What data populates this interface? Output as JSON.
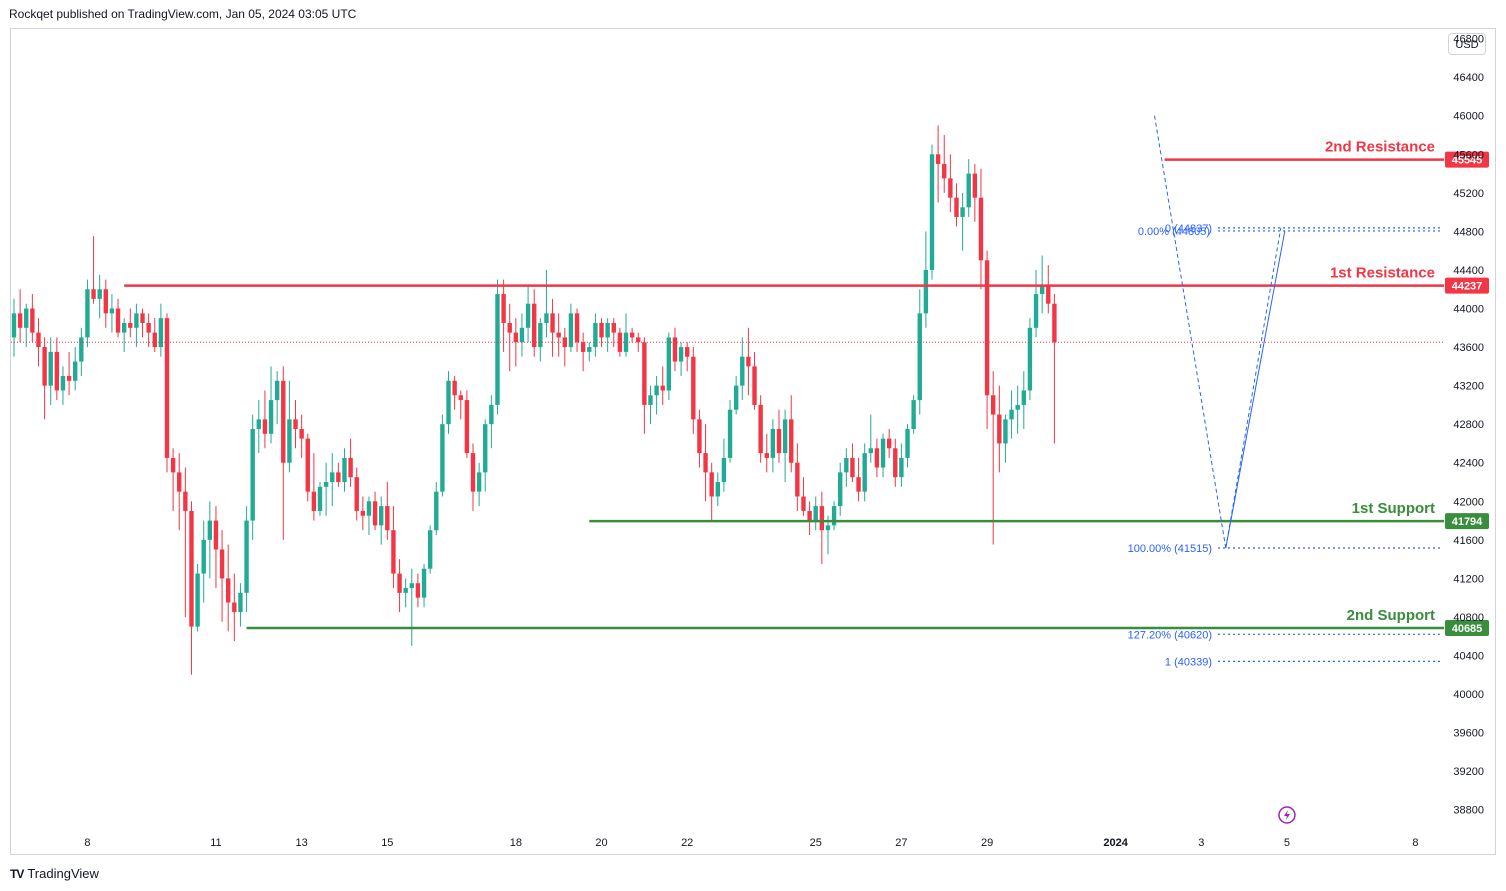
{
  "header": {
    "publisher": "Rockqet published on TradingView.com, Jan 05, 2024 03:05 UTC"
  },
  "currency": "USD",
  "footer": {
    "brand": "TradingView",
    "brand_mark": "TV"
  },
  "colors": {
    "up": "#22ab94",
    "down": "#f23645",
    "resistance": "#f23645",
    "support": "#388e3c",
    "fib": "#2962ff"
  },
  "chart_data": {
    "type": "candlestick",
    "ylim": [
      38600,
      46900
    ],
    "y_ticks": [
      38800,
      39200,
      39600,
      40000,
      40400,
      40800,
      41200,
      41600,
      42000,
      42400,
      42800,
      43200,
      43600,
      44000,
      44400,
      44800,
      45200,
      45600,
      46000,
      46400,
      46800
    ],
    "x_ticks": [
      {
        "label": "8",
        "index": 12
      },
      {
        "label": "11",
        "index": 33
      },
      {
        "label": "13",
        "index": 47
      },
      {
        "label": "15",
        "index": 61
      },
      {
        "label": "18",
        "index": 82
      },
      {
        "label": "20",
        "index": 96
      },
      {
        "label": "22",
        "index": 110
      },
      {
        "label": "25",
        "index": 131
      },
      {
        "label": "27",
        "index": 145
      },
      {
        "label": "29",
        "index": 159
      },
      {
        "label": "2024",
        "index": 180
      },
      {
        "label": "3",
        "index": 194
      },
      {
        "label": "5",
        "index": 208
      },
      {
        "label": "8",
        "index": 229
      }
    ],
    "levels": [
      {
        "name": "2nd Resistance",
        "value": 45545,
        "badge": "45545",
        "kind": "resistance",
        "from_index": 188
      },
      {
        "name": "1st Resistance",
        "value": 44237,
        "badge": "44237",
        "kind": "resistance",
        "from_index": 18
      },
      {
        "name": "1st Support",
        "value": 41794,
        "badge": "41794",
        "kind": "support",
        "from_index": 94
      },
      {
        "name": "2nd Support",
        "value": 40685,
        "badge": "40685",
        "kind": "support",
        "from_index": 38
      }
    ],
    "fib_levels": [
      {
        "label": "0.00% (44805)",
        "value": 44805
      },
      {
        "label": "0 (44837)",
        "value": 44837
      },
      {
        "label": "100.00% (41515)",
        "value": 41515
      },
      {
        "label": "127.20% (40620)",
        "value": 40620
      },
      {
        "label": "1 (40339)",
        "value": 40339
      }
    ],
    "last_price": 43650,
    "candles": [
      [
        43700,
        44100,
        43500,
        43950
      ],
      [
        43950,
        44200,
        43650,
        43800
      ],
      [
        43800,
        44050,
        43600,
        44000
      ],
      [
        44000,
        44150,
        43650,
        43750
      ],
      [
        43750,
        43900,
        43400,
        43600
      ],
      [
        43600,
        43700,
        42850,
        43200
      ],
      [
        43200,
        43700,
        43000,
        43550
      ],
      [
        43550,
        43700,
        43050,
        43150
      ],
      [
        43150,
        43400,
        43000,
        43300
      ],
      [
        43300,
        43550,
        43100,
        43250
      ],
      [
        43250,
        43600,
        43150,
        43450
      ],
      [
        43450,
        43800,
        43300,
        43700
      ],
      [
        43700,
        44300,
        43600,
        44200
      ],
      [
        44200,
        44750,
        44050,
        44100
      ],
      [
        44100,
        44350,
        43900,
        44200
      ],
      [
        44200,
        44300,
        43800,
        43950
      ],
      [
        43950,
        44150,
        43750,
        44000
      ],
      [
        44000,
        44100,
        43700,
        43750
      ],
      [
        43750,
        43900,
        43550,
        43850
      ],
      [
        43850,
        44000,
        43700,
        43800
      ],
      [
        43800,
        44050,
        43600,
        43950
      ],
      [
        43950,
        44000,
        43700,
        43850
      ],
      [
        43850,
        43950,
        43600,
        43750
      ],
      [
        43750,
        43900,
        43550,
        43600
      ],
      [
        43600,
        44050,
        43500,
        43900
      ],
      [
        43900,
        43950,
        42300,
        42450
      ],
      [
        42450,
        42550,
        41900,
        42300
      ],
      [
        42300,
        42500,
        41700,
        42100
      ],
      [
        42100,
        42350,
        40800,
        41900
      ],
      [
        41900,
        42000,
        40200,
        40700
      ],
      [
        40700,
        41350,
        40650,
        41250
      ],
      [
        41250,
        41800,
        40950,
        41600
      ],
      [
        41600,
        42000,
        41200,
        41800
      ],
      [
        41800,
        41950,
        41100,
        41500
      ],
      [
        41500,
        41700,
        40750,
        41200
      ],
      [
        41200,
        41550,
        40650,
        40950
      ],
      [
        40950,
        41250,
        40550,
        40850
      ],
      [
        40850,
        41150,
        40700,
        41050
      ],
      [
        41050,
        41950,
        40850,
        41800
      ],
      [
        41800,
        42900,
        41600,
        42750
      ],
      [
        42750,
        43050,
        42500,
        42850
      ],
      [
        42850,
        43150,
        42550,
        42700
      ],
      [
        42700,
        43400,
        42600,
        43050
      ],
      [
        43050,
        43350,
        42800,
        43250
      ],
      [
        43250,
        43400,
        41600,
        42400
      ],
      [
        42400,
        43250,
        42300,
        42850
      ],
      [
        42850,
        43050,
        42550,
        42750
      ],
      [
        42750,
        42900,
        42450,
        42650
      ],
      [
        42650,
        42700,
        42000,
        42100
      ],
      [
        42100,
        42500,
        41800,
        41900
      ],
      [
        41900,
        42200,
        41850,
        42150
      ],
      [
        42150,
        42400,
        41850,
        42200
      ],
      [
        42200,
        42500,
        41950,
        42300
      ],
      [
        42300,
        42400,
        42150,
        42200
      ],
      [
        42200,
        42550,
        42100,
        42450
      ],
      [
        42450,
        42650,
        42150,
        42250
      ],
      [
        42250,
        42350,
        41800,
        41900
      ],
      [
        41900,
        42050,
        41700,
        41850
      ],
      [
        41850,
        42050,
        41650,
        42000
      ],
      [
        42000,
        42100,
        41700,
        41750
      ],
      [
        41750,
        42050,
        41550,
        41950
      ],
      [
        41950,
        42200,
        41600,
        41700
      ],
      [
        41700,
        41950,
        41100,
        41250
      ],
      [
        41250,
        41400,
        40850,
        41050
      ],
      [
        41050,
        41200,
        40900,
        41100
      ],
      [
        41100,
        41300,
        40500,
        41150
      ],
      [
        41150,
        41250,
        40900,
        41000
      ],
      [
        41000,
        41350,
        40900,
        41300
      ],
      [
        41300,
        41750,
        41250,
        41700
      ],
      [
        41700,
        42200,
        41650,
        42100
      ],
      [
        42100,
        42900,
        42050,
        42800
      ],
      [
        42800,
        43350,
        42700,
        43250
      ],
      [
        43250,
        43300,
        42950,
        43100
      ],
      [
        43100,
        43150,
        42850,
        43050
      ],
      [
        43050,
        43150,
        42450,
        42500
      ],
      [
        42500,
        42600,
        41900,
        42100
      ],
      [
        42100,
        42400,
        41950,
        42300
      ],
      [
        42300,
        42850,
        42100,
        42800
      ],
      [
        42800,
        43100,
        42550,
        43000
      ],
      [
        43000,
        44300,
        42900,
        44150
      ],
      [
        44150,
        44300,
        43550,
        43850
      ],
      [
        43850,
        44050,
        43350,
        43750
      ],
      [
        43750,
        43900,
        43400,
        43650
      ],
      [
        43650,
        43950,
        43500,
        43800
      ],
      [
        43800,
        44250,
        43650,
        44050
      ],
      [
        44050,
        44200,
        43500,
        43600
      ],
      [
        43600,
        43900,
        43450,
        43850
      ],
      [
        43850,
        44400,
        43700,
        43950
      ],
      [
        43950,
        44100,
        43500,
        43750
      ],
      [
        43750,
        43950,
        43500,
        43700
      ],
      [
        43700,
        43800,
        43400,
        43600
      ],
      [
        43600,
        44050,
        43550,
        43950
      ],
      [
        43950,
        44000,
        43550,
        43650
      ],
      [
        43650,
        43750,
        43350,
        43550
      ],
      [
        43550,
        43650,
        43450,
        43600
      ],
      [
        43600,
        43950,
        43500,
        43850
      ],
      [
        43850,
        43900,
        43600,
        43700
      ],
      [
        43700,
        43900,
        43550,
        43850
      ],
      [
        43850,
        43900,
        43600,
        43750
      ],
      [
        43750,
        43800,
        43500,
        43550
      ],
      [
        43550,
        43950,
        43500,
        43750
      ],
      [
        43750,
        43800,
        43650,
        43700
      ],
      [
        43700,
        43750,
        43550,
        43650
      ],
      [
        43650,
        43700,
        42700,
        43000
      ],
      [
        43000,
        43200,
        42800,
        43100
      ],
      [
        43100,
        43300,
        42900,
        43200
      ],
      [
        43200,
        43400,
        43000,
        43150
      ],
      [
        43150,
        43750,
        43050,
        43700
      ],
      [
        43700,
        43800,
        43350,
        43450
      ],
      [
        43450,
        43650,
        43300,
        43600
      ],
      [
        43600,
        43650,
        43350,
        43500
      ],
      [
        43500,
        43600,
        42700,
        42850
      ],
      [
        42850,
        42950,
        42350,
        42500
      ],
      [
        42500,
        42800,
        42000,
        42300
      ],
      [
        42300,
        42400,
        41800,
        42050
      ],
      [
        42050,
        42300,
        41950,
        42200
      ],
      [
        42200,
        42650,
        42100,
        42450
      ],
      [
        42450,
        43050,
        42400,
        42950
      ],
      [
        42950,
        43300,
        42900,
        43200
      ],
      [
        43200,
        43700,
        43050,
        43500
      ],
      [
        43500,
        43800,
        43100,
        43400
      ],
      [
        43400,
        43550,
        42950,
        43000
      ],
      [
        43000,
        43100,
        42400,
        42500
      ],
      [
        42500,
        42700,
        42300,
        42450
      ],
      [
        42450,
        42850,
        42300,
        42750
      ],
      [
        42750,
        42950,
        42400,
        42500
      ],
      [
        42500,
        42950,
        42200,
        42850
      ],
      [
        42850,
        43100,
        42300,
        42400
      ],
      [
        42400,
        42600,
        41900,
        42050
      ],
      [
        42050,
        42250,
        41850,
        41900
      ],
      [
        41900,
        42000,
        41650,
        41800
      ],
      [
        41800,
        42050,
        41700,
        41950
      ],
      [
        41950,
        42100,
        41350,
        41700
      ],
      [
        41700,
        41850,
        41450,
        41750
      ],
      [
        41750,
        42000,
        41700,
        41950
      ],
      [
        41950,
        42400,
        41850,
        42300
      ],
      [
        42300,
        42550,
        42150,
        42450
      ],
      [
        42450,
        42600,
        42200,
        42250
      ],
      [
        42250,
        42450,
        42000,
        42100
      ],
      [
        42100,
        42600,
        42000,
        42500
      ],
      [
        42500,
        42900,
        42400,
        42550
      ],
      [
        42550,
        42650,
        42250,
        42350
      ],
      [
        42350,
        42700,
        42250,
        42650
      ],
      [
        42650,
        42750,
        42450,
        42550
      ],
      [
        42550,
        42650,
        42150,
        42250
      ],
      [
        42250,
        42600,
        42150,
        42450
      ],
      [
        42450,
        42800,
        42350,
        42750
      ],
      [
        42750,
        43100,
        42700,
        43050
      ],
      [
        43050,
        44200,
        42900,
        43950
      ],
      [
        43950,
        44800,
        43800,
        44400
      ],
      [
        44400,
        45700,
        44300,
        45600
      ],
      [
        45600,
        45900,
        45100,
        45500
      ],
      [
        45500,
        45800,
        45200,
        45350
      ],
      [
        45350,
        45600,
        45000,
        45150
      ],
      [
        45150,
        45300,
        44850,
        44950
      ],
      [
        44950,
        45200,
        44600,
        45050
      ],
      [
        45050,
        45550,
        44950,
        45400
      ],
      [
        45400,
        45500,
        44900,
        45150
      ],
      [
        45150,
        45450,
        44200,
        44500
      ],
      [
        44500,
        44600,
        42750,
        43100
      ],
      [
        43100,
        43350,
        41550,
        42900
      ],
      [
        42900,
        43200,
        42300,
        42600
      ],
      [
        42600,
        42900,
        42400,
        42850
      ],
      [
        42850,
        43150,
        42650,
        42950
      ],
      [
        42950,
        43200,
        42700,
        43000
      ],
      [
        43000,
        43350,
        42750,
        43150
      ],
      [
        43150,
        43900,
        43050,
        43800
      ],
      [
        43800,
        44400,
        43700,
        44150
      ],
      [
        44150,
        44550,
        43950,
        44250
      ],
      [
        44250,
        44450,
        43950,
        44050
      ],
      [
        44050,
        44150,
        42600,
        43650
      ]
    ]
  }
}
